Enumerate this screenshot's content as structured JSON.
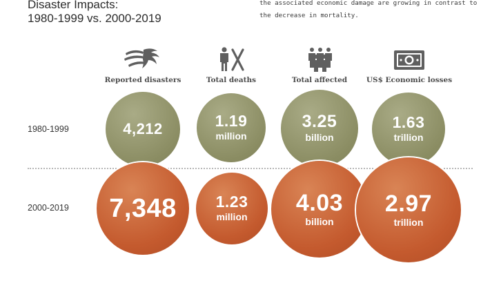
{
  "header": {
    "title_line1": "Disaster Impacts:",
    "title_line2": "1980-1999 vs. 2000-2019",
    "intro_line1": "the associated economic damage are growing in contrast to",
    "intro_line2": "the decrease in mortality."
  },
  "icons": [
    "storm-icon",
    "person-death-icon",
    "crowd-icon",
    "money-icon"
  ],
  "colors": {
    "period1": "#8b8d63",
    "period2": "#c45a2e",
    "text": "#4d4d4d"
  },
  "chart_data": {
    "type": "bubble",
    "title": "Disaster Impacts: 1980-1999 vs. 2000-2019",
    "categories": [
      "Reported disasters",
      "Total deaths",
      "Total affected",
      "US$ Economic losses"
    ],
    "series": [
      {
        "name": "1980-1999",
        "values": [
          4212,
          1190000,
          3250000000,
          1630000000000
        ],
        "labels": [
          "4,212",
          "1.19",
          "3.25",
          "1.63"
        ],
        "units": [
          "",
          "million",
          "billion",
          "trillion"
        ]
      },
      {
        "name": "2000-2019",
        "values": [
          7348,
          1230000,
          4030000000,
          2970000000000
        ],
        "labels": [
          "7,348",
          "1.23",
          "4.03",
          "2.97"
        ],
        "units": [
          "",
          "million",
          "billion",
          "trillion"
        ]
      }
    ]
  }
}
